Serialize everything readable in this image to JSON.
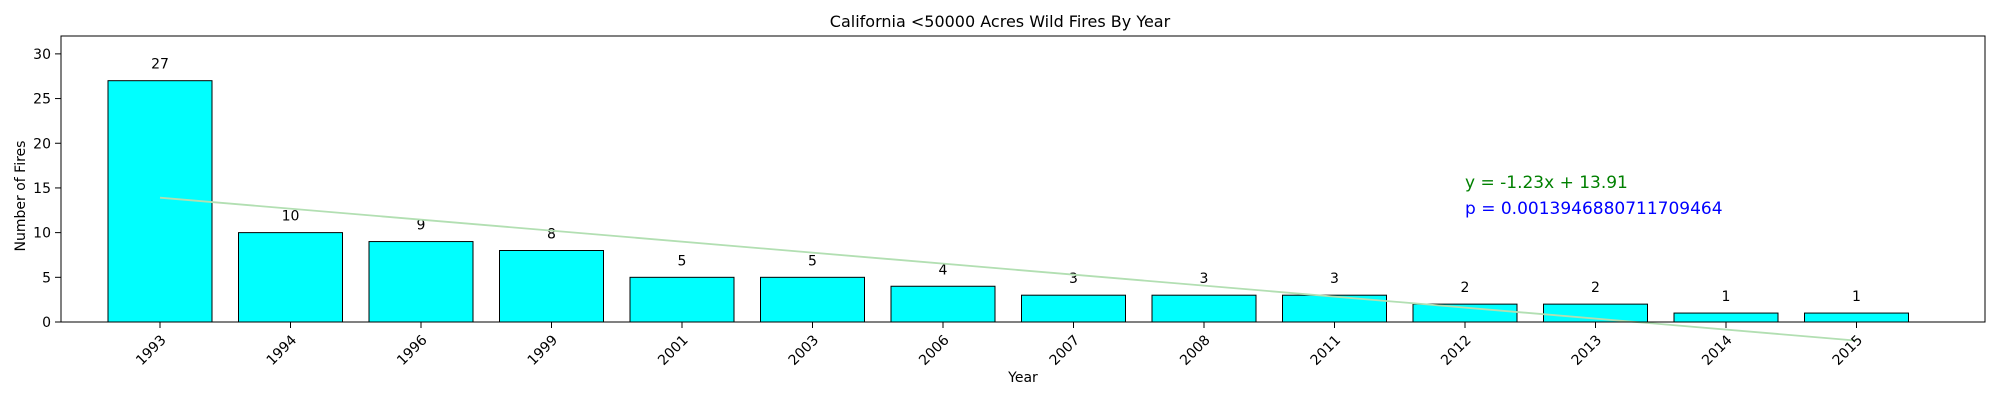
{
  "chart_data": {
    "type": "bar",
    "title": "California <50000 Acres Wild Fires By Year",
    "xlabel": "Year",
    "ylabel": "Number of Fires",
    "categories": [
      "1993",
      "1994",
      "1996",
      "1999",
      "2001",
      "2003",
      "2006",
      "2007",
      "2008",
      "2011",
      "2012",
      "2013",
      "2014",
      "2015"
    ],
    "values": [
      27,
      10,
      9,
      8,
      5,
      5,
      4,
      3,
      3,
      3,
      2,
      2,
      1,
      1
    ],
    "ylim": [
      0,
      32
    ],
    "yticks": [
      0,
      5,
      10,
      15,
      20,
      25,
      30
    ],
    "bar_color": "#00ffff",
    "bar_edge_color": "#000000",
    "grid": false,
    "trendline": {
      "slope": -1.23,
      "intercept": 13.91,
      "color": "#b2dfb2",
      "equation_text": "y = -1.23x + 13.91",
      "equation_color": "#008000",
      "p_text": "p = 0.0013946880711709464",
      "p_color": "#0000ff"
    }
  }
}
